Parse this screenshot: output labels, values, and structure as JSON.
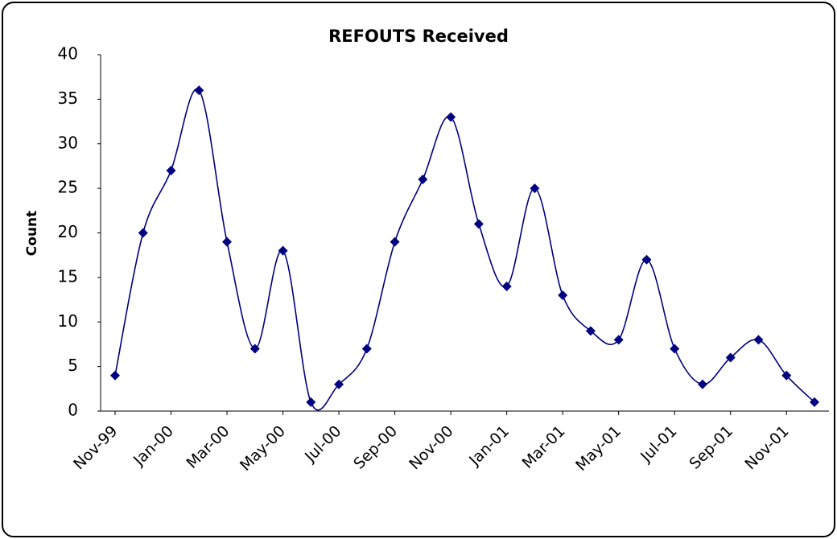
{
  "chart_data": {
    "type": "line",
    "title": "REFOUTS Received",
    "y_label": "Count",
    "categories": [
      "Nov-99",
      null,
      "Jan-00",
      null,
      "Mar-00",
      null,
      "May-00",
      null,
      "Jul-00",
      null,
      "Sep-00",
      null,
      "Nov-00",
      null,
      "Jan-01",
      null,
      "Mar-01",
      null,
      "May-01",
      null,
      "Jul-01",
      null,
      "Sep-01",
      null,
      "Nov-01",
      null
    ],
    "series": [
      {
        "name": "REFOUTS Received",
        "color": "#000080",
        "values": [
          4,
          20,
          27,
          36,
          19,
          7,
          18,
          1,
          3,
          7,
          19,
          26,
          33,
          21,
          14,
          25,
          13,
          9,
          8,
          17,
          7,
          3,
          6,
          8,
          4,
          1
        ]
      }
    ],
    "ylim": [
      0,
      40
    ],
    "yticks": [
      0,
      5,
      10,
      15,
      20,
      25,
      30,
      35,
      40
    ],
    "grid": false,
    "smooth": true
  }
}
